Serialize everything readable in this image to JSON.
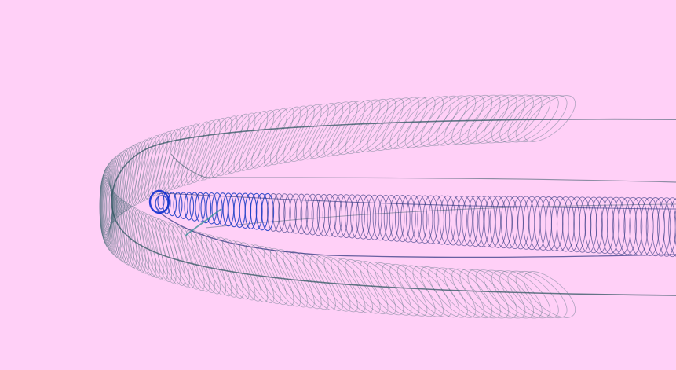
{
  "scene": {
    "background_color": "#ffd0f7",
    "subject": "slinky-coil-spiral-torus",
    "colors": {
      "outer_loops": "#4f6f7c",
      "outer_edge": "#2f5560",
      "inner_loops": "#27307a",
      "inner_highlight": "#1a3cc4",
      "tip_accent": "#0f2fd0",
      "teal_accent": "#3c8f98"
    }
  }
}
